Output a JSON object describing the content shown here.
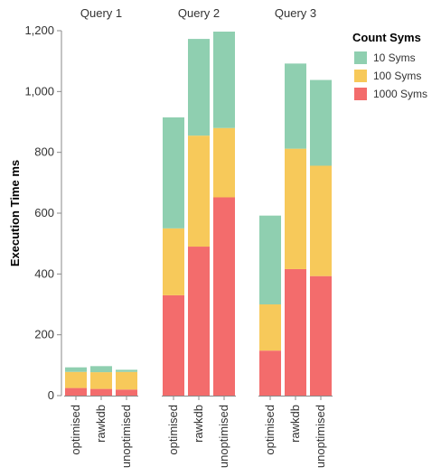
{
  "chart_data": {
    "type": "bar",
    "stacked": true,
    "facet_titles": [
      "Query 1",
      "Query 2",
      "Query 3"
    ],
    "categories": [
      "optimised",
      "rawkdb",
      "unoptimised"
    ],
    "ylabel": "Execution Time ms",
    "ylim": [
      0,
      1200
    ],
    "yticks": [
      0,
      200,
      400,
      600,
      800,
      1000,
      1200
    ],
    "ytick_labels": [
      "0",
      "200",
      "400",
      "600",
      "800",
      "1,000",
      "1,200"
    ],
    "legend": {
      "title": "Count Syms",
      "placement": "top-right",
      "entries": [
        "10 Syms",
        "100 Syms",
        "1000 Syms"
      ]
    },
    "colors": {
      "10 Syms": "#8fcfb0",
      "100 Syms": "#f7c95a",
      "1000 Syms": "#f36c6c"
    },
    "facets": [
      {
        "title": "Query 1",
        "series": [
          {
            "name": "1000 Syms",
            "values": [
              25,
              22,
              20
            ]
          },
          {
            "name": "100 Syms",
            "values": [
              53,
              55,
              58
            ]
          },
          {
            "name": "10 Syms",
            "values": [
              15,
              20,
              7
            ]
          }
        ]
      },
      {
        "title": "Query 2",
        "series": [
          {
            "name": "1000 Syms",
            "values": [
              330,
              490,
              652
            ]
          },
          {
            "name": "100 Syms",
            "values": [
              220,
              365,
              228
            ]
          },
          {
            "name": "10 Syms",
            "values": [
              365,
              318,
              317
            ]
          }
        ]
      },
      {
        "title": "Query 3",
        "series": [
          {
            "name": "1000 Syms",
            "values": [
              148,
              416,
              393
            ]
          },
          {
            "name": "100 Syms",
            "values": [
              152,
              396,
              363
            ]
          },
          {
            "name": "10 Syms",
            "values": [
              292,
              280,
              282
            ]
          }
        ]
      }
    ]
  }
}
